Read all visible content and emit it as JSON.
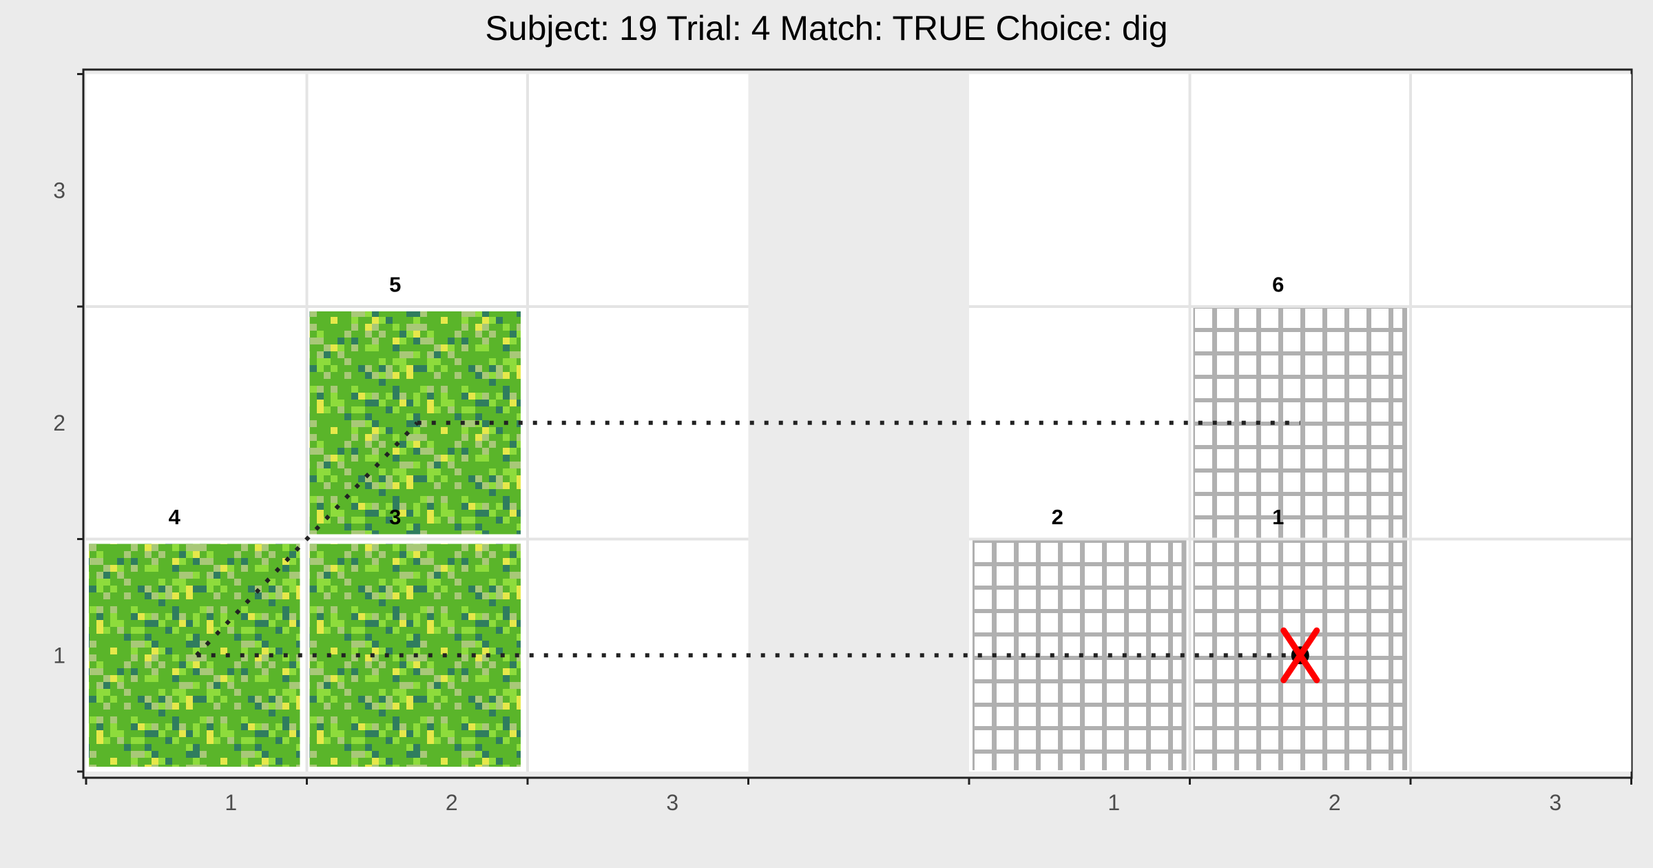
{
  "chart_data": {
    "type": "grid-trajectory",
    "title": "Subject:  19  Trial:  4  Match: TRUE  Choice: dig",
    "xlabel": "",
    "ylabel": "",
    "panels": [
      {
        "name": "left",
        "x_ticks": [
          "1",
          "2",
          "3"
        ]
      },
      {
        "name": "right",
        "x_ticks": [
          "1",
          "2",
          "3"
        ]
      }
    ],
    "y_ticks": [
      "1",
      "2",
      "3"
    ],
    "grid": true,
    "colors": {
      "panel_background": "#ffffff",
      "outer_background": "#ebebeb",
      "grass": "#5ab52a",
      "grass_light": "#8edc3c",
      "grass_pale": "#a8c878",
      "grass_dark": "#2f7d5e",
      "grass_yellow": "#e6e84a",
      "fence": "#b0b0b0",
      "path": "#222222",
      "marker_x": "#ff0000"
    },
    "tiles": [
      {
        "panel": "left",
        "col": 1,
        "row": 1,
        "texture": "grass"
      },
      {
        "panel": "left",
        "col": 2,
        "row": 1,
        "texture": "grass"
      },
      {
        "panel": "left",
        "col": 2,
        "row": 2,
        "texture": "grass"
      },
      {
        "panel": "right",
        "col": 1,
        "row": 1,
        "texture": "fence"
      },
      {
        "panel": "right",
        "col": 2,
        "row": 1,
        "texture": "fence"
      },
      {
        "panel": "right",
        "col": 2,
        "row": 2,
        "texture": "fence"
      }
    ],
    "cell_labels": [
      {
        "text": "1",
        "panel": "right",
        "x": 2.4,
        "y": 1.6
      },
      {
        "text": "2",
        "panel": "right",
        "x": 1.4,
        "y": 1.6
      },
      {
        "text": "3",
        "panel": "left",
        "x": 2.4,
        "y": 1.6
      },
      {
        "text": "4",
        "panel": "left",
        "x": 1.4,
        "y": 1.6
      },
      {
        "text": "5",
        "panel": "left",
        "x": 2.4,
        "y": 2.6
      },
      {
        "text": "6",
        "panel": "right",
        "x": 2.4,
        "y": 2.6
      }
    ],
    "paths": [
      {
        "name": "bottom-row-path",
        "points": [
          {
            "panel": "right",
            "x": 2.5,
            "y": 1.5
          },
          {
            "panel": "left",
            "x": 1.5,
            "y": 1.5
          }
        ]
      },
      {
        "name": "diagonal-path",
        "points": [
          {
            "panel": "left",
            "x": 1.5,
            "y": 1.5
          },
          {
            "panel": "left",
            "x": 2.5,
            "y": 2.5
          }
        ]
      },
      {
        "name": "top-row-path",
        "points": [
          {
            "panel": "left",
            "x": 2.5,
            "y": 2.5
          },
          {
            "panel": "right",
            "x": 2.5,
            "y": 2.5
          }
        ]
      }
    ],
    "markers": [
      {
        "name": "start-point",
        "panel": "right",
        "x": 2.5,
        "y": 1.5,
        "shape": "dot"
      },
      {
        "name": "dig-marker",
        "panel": "right",
        "x": 2.5,
        "y": 1.5,
        "shape": "x"
      }
    ]
  }
}
